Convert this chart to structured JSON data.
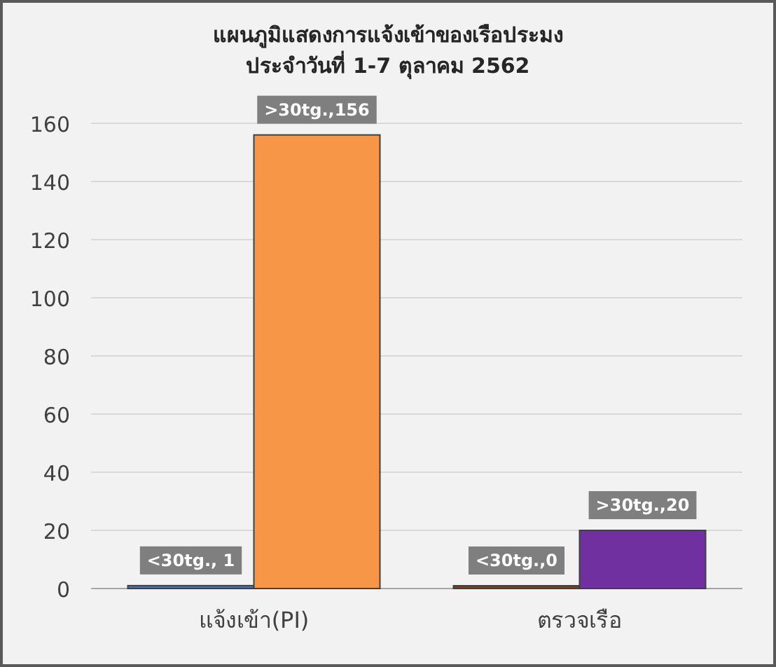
{
  "chart_data": {
    "type": "bar",
    "title": "แผนภูมิแสดงการแจ้งเข้าของเรือประมง",
    "subtitle": "ประจำวันที่ 1-7 ตุลาคม 2562",
    "categories": [
      "แจ้งเข้า(PI)",
      "ตรวจเรือ"
    ],
    "series": [
      {
        "values": [
          1,
          0
        ],
        "colors": [
          "#4472c4",
          "#843c0c"
        ],
        "value_labels": [
          "<30tg., 1",
          "<30tg.,0"
        ]
      },
      {
        "values": [
          156,
          20
        ],
        "colors": [
          "#f79646",
          "#7030a0"
        ],
        "value_labels": [
          ">30tg.,156",
          ">30tg.,20"
        ]
      }
    ],
    "ylim": [
      0,
      160
    ],
    "yticks": [
      0,
      20,
      40,
      60,
      80,
      100,
      120,
      140,
      160
    ],
    "grid": "y"
  }
}
